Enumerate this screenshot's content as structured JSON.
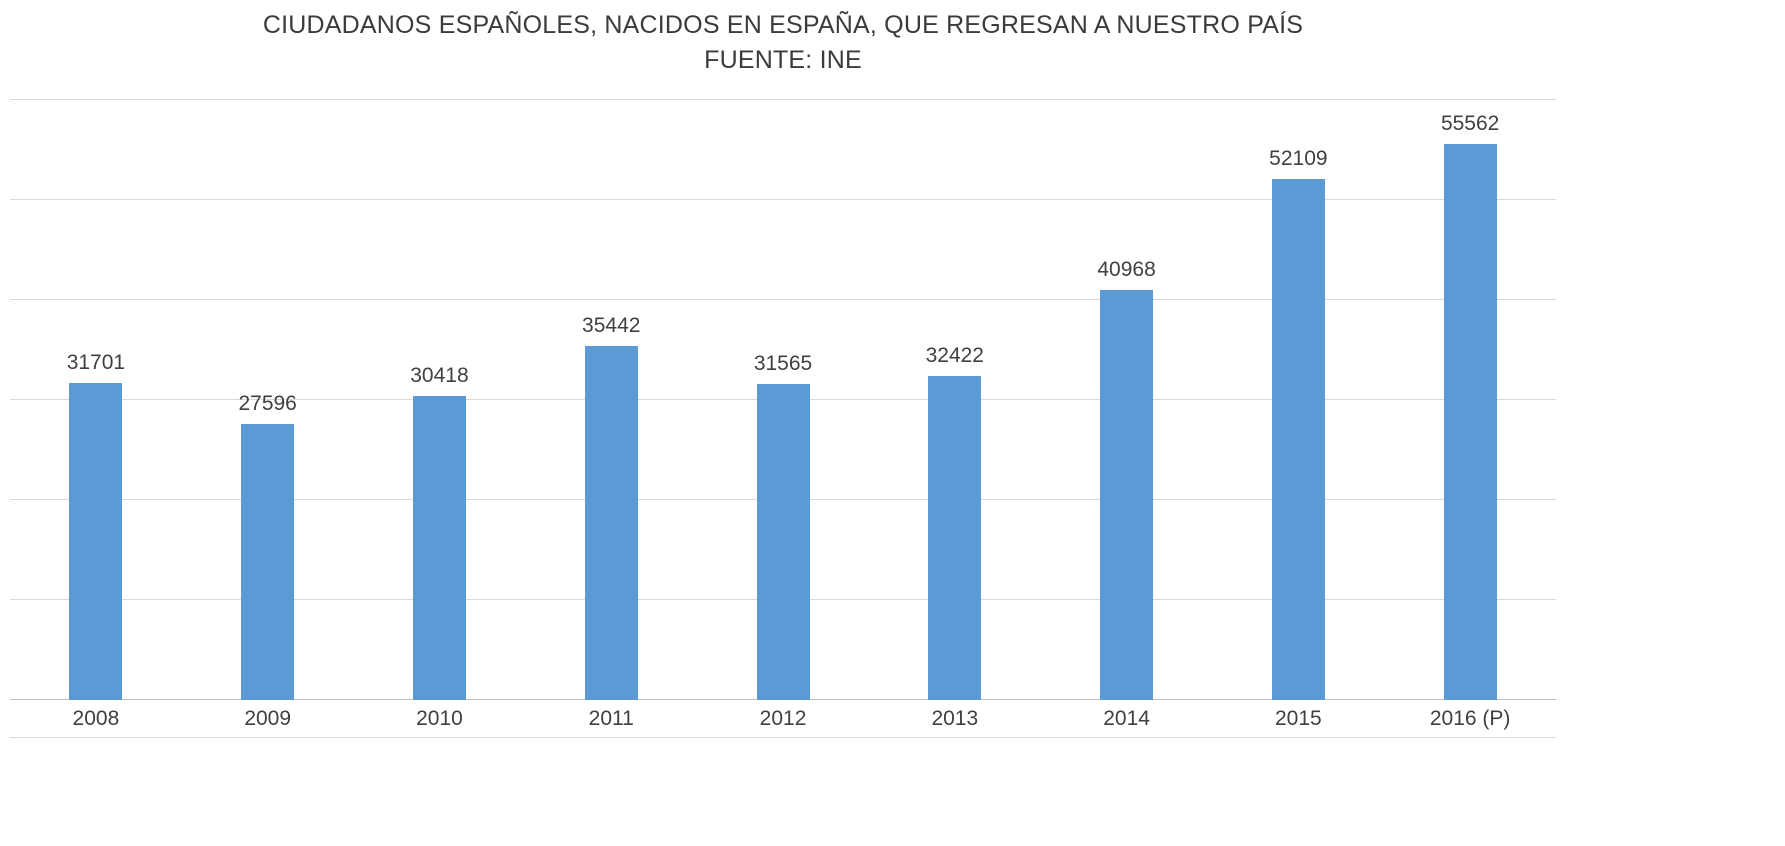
{
  "chart_data": {
    "type": "bar",
    "title": "CIUDADANOS ESPAÑOLES, NACIDOS EN ESPAÑA, QUE REGRESAN A NUESTRO PAÍS",
    "subtitle": "FUENTE: INE",
    "categories": [
      "2008",
      "2009",
      "2010",
      "2011",
      "2012",
      "2013",
      "2014",
      "2015",
      "2016 (P)"
    ],
    "values": [
      31701,
      27596,
      30418,
      35442,
      31565,
      32422,
      40968,
      52109,
      55562
    ],
    "xlabel": "",
    "ylabel": "",
    "ylim": [
      0,
      60000
    ],
    "gridline_step": 10000,
    "grid": "on",
    "legend": "none",
    "bar_color": "#5b9bd5",
    "grid_color": "#d9d9d9",
    "axis_line_color": "#bfbfbf",
    "label_color": "#404040",
    "title_color": "#3b3b3b"
  }
}
